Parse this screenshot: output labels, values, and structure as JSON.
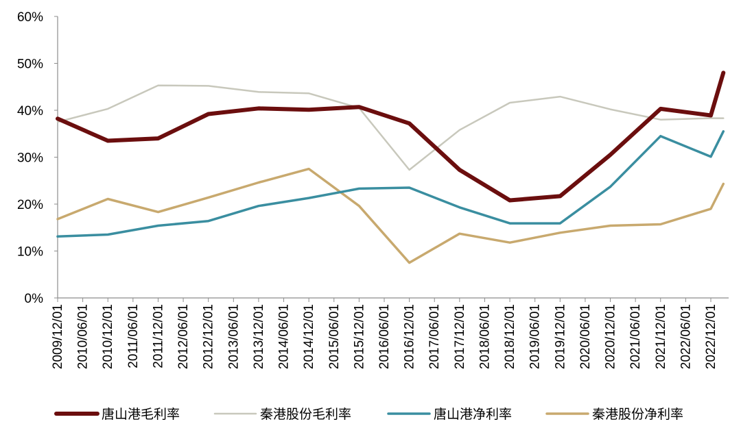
{
  "chart_data": {
    "type": "line",
    "title": "",
    "xlabel": "",
    "ylabel": "",
    "ylim": [
      0,
      60
    ],
    "y_unit": "%",
    "y_ticks": [
      "0%",
      "10%",
      "20%",
      "30%",
      "40%",
      "50%",
      "60%"
    ],
    "x_tick_labels": [
      "2009/12/01",
      "2010/06/01",
      "2010/12/01",
      "2011/06/01",
      "2011/12/01",
      "2012/06/01",
      "2012/12/01",
      "2013/06/01",
      "2013/12/01",
      "2014/06/01",
      "2014/12/01",
      "2015/06/01",
      "2015/12/01",
      "2016/06/01",
      "2016/12/01",
      "2017/06/01",
      "2017/12/01",
      "2018/06/01",
      "2018/12/01",
      "2019/06/01",
      "2019/12/01",
      "2020/06/01",
      "2020/12/01",
      "2021/06/01",
      "2021/12/01",
      "2022/06/01",
      "2022/12/01"
    ],
    "x_points": [
      "2009/12/01",
      "2010/12/01",
      "2011/12/01",
      "2012/12/01",
      "2013/12/01",
      "2014/12/01",
      "2015/12/01",
      "2016/12/01",
      "2017/12/01",
      "2018/12/01",
      "2019/12/01",
      "2020/12/01",
      "2021/12/01",
      "2022/12/01",
      "2023/03/01"
    ],
    "grid": false,
    "legend_position": "bottom",
    "series": [
      {
        "name": "唐山港毛利率",
        "color": "#6b0e0e",
        "width": 6,
        "values": [
          38.2,
          33.5,
          34.0,
          39.2,
          40.4,
          40.1,
          40.7,
          37.2,
          27.3,
          20.8,
          21.7,
          30.5,
          40.3,
          38.9,
          48.0
        ]
      },
      {
        "name": "秦港股份毛利率",
        "color": "#c8c8bc",
        "width": 2.5,
        "values": [
          37.5,
          40.3,
          45.3,
          45.2,
          43.9,
          43.6,
          40.5,
          27.3,
          35.8,
          41.6,
          42.9,
          40.2,
          38.0,
          38.3,
          38.3
        ]
      },
      {
        "name": "唐山港净利率",
        "color": "#3a8ea0",
        "width": 3.5,
        "values": [
          13.1,
          13.5,
          15.4,
          16.4,
          19.6,
          21.3,
          23.3,
          23.5,
          19.3,
          15.9,
          15.9,
          23.7,
          34.5,
          30.1,
          35.5
        ]
      },
      {
        "name": "秦港股份净利率",
        "color": "#c8a96e",
        "width": 3.5,
        "values": [
          16.8,
          21.1,
          18.3,
          21.4,
          24.6,
          27.5,
          19.6,
          7.5,
          13.7,
          11.8,
          13.9,
          15.4,
          15.7,
          19.0,
          24.3
        ]
      }
    ]
  }
}
